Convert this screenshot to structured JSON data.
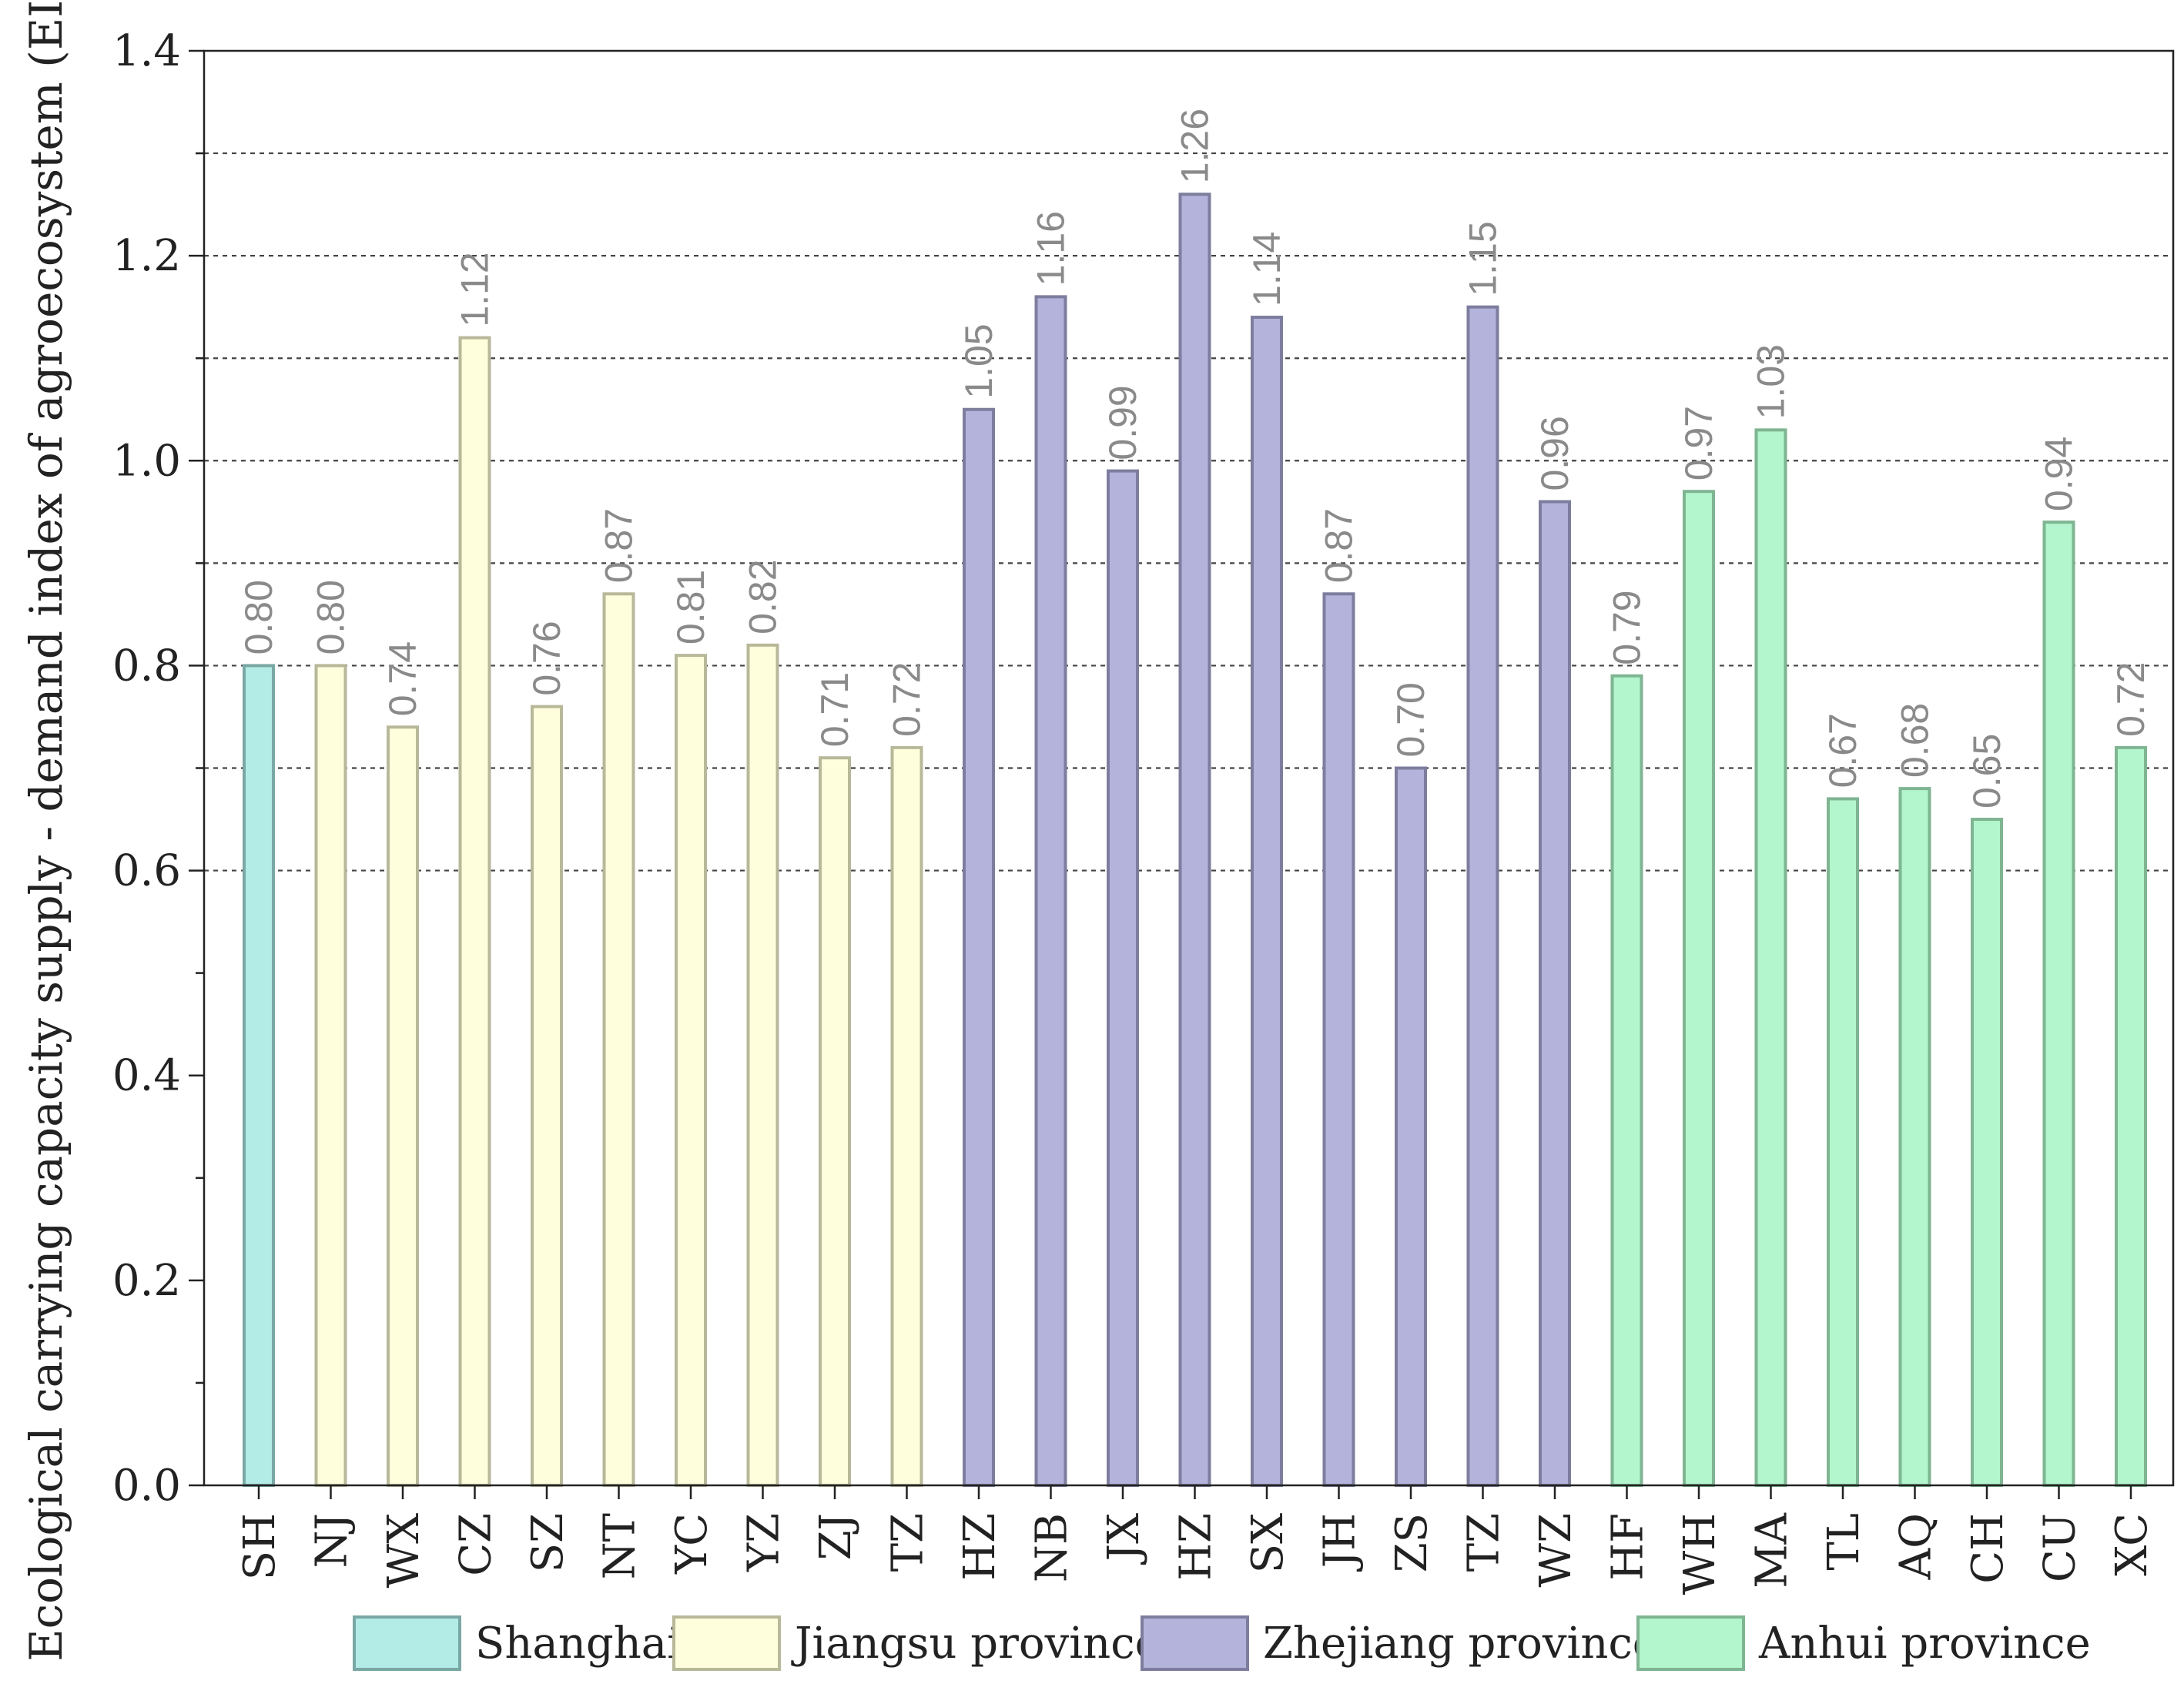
{
  "chart_data": {
    "type": "bar",
    "title": "",
    "xlabel": "",
    "ylabel": "Ecological carrying capacity supply - demand index of agroecosystem (EI)",
    "ylim": [
      0,
      1.4
    ],
    "yticks": [
      "0.0",
      "0.2",
      "0.4",
      "0.6",
      "0.8",
      "1.0",
      "1.2",
      "1.4"
    ],
    "grid": "dotted horizontal at 0.7, 0.9, 1.1, 1.3 and dashed at 0.6, 0.8, 1.0, 1.2",
    "legend_position": "bottom",
    "groups": [
      {
        "name": "Shanghai",
        "color": "#b3ebe6",
        "edge": "#7aa8a4"
      },
      {
        "name": "Jiangsu province",
        "color": "#fefedc",
        "edge": "#b8b89a"
      },
      {
        "name": "Zhejiang province",
        "color": "#b3b3db",
        "edge": "#7d7d9e"
      },
      {
        "name": "Anhui province",
        "color": "#b3f5cd",
        "edge": "#7fb592"
      }
    ],
    "categories": [
      "SH",
      "NJ",
      "WX",
      "CZ",
      "SZ",
      "NT",
      "YC",
      "YZ",
      "ZJ",
      "TZ",
      "HZ",
      "NB",
      "JX",
      "HZ",
      "SX",
      "JH",
      "ZS",
      "TZ",
      "WZ",
      "HF",
      "WH",
      "MA",
      "TL",
      "AQ",
      "CH",
      "CU",
      "XC"
    ],
    "values": [
      0.8,
      0.8,
      0.74,
      1.12,
      0.76,
      0.87,
      0.81,
      0.82,
      0.71,
      0.72,
      1.05,
      1.16,
      0.99,
      1.26,
      1.14,
      0.87,
      0.7,
      1.15,
      0.96,
      0.79,
      0.97,
      1.03,
      0.67,
      0.68,
      0.65,
      0.94,
      0.72
    ],
    "value_labels": [
      "0.80",
      "0.80",
      "0.74",
      "1.12",
      "0.76",
      "0.87",
      "0.81",
      "0.82",
      "0.71",
      "0.72",
      "1.05",
      "1.16",
      "0.99",
      "1.26",
      "1.14",
      "0.87",
      "0.70",
      "1.15",
      "0.96",
      "0.79",
      "0.97",
      "1.03",
      "0.67",
      "0.68",
      "0.65",
      "0.94",
      "0.72"
    ],
    "group_index": [
      0,
      1,
      1,
      1,
      1,
      1,
      1,
      1,
      1,
      1,
      2,
      2,
      2,
      2,
      2,
      2,
      2,
      2,
      2,
      3,
      3,
      3,
      3,
      3,
      3,
      3,
      3
    ]
  }
}
